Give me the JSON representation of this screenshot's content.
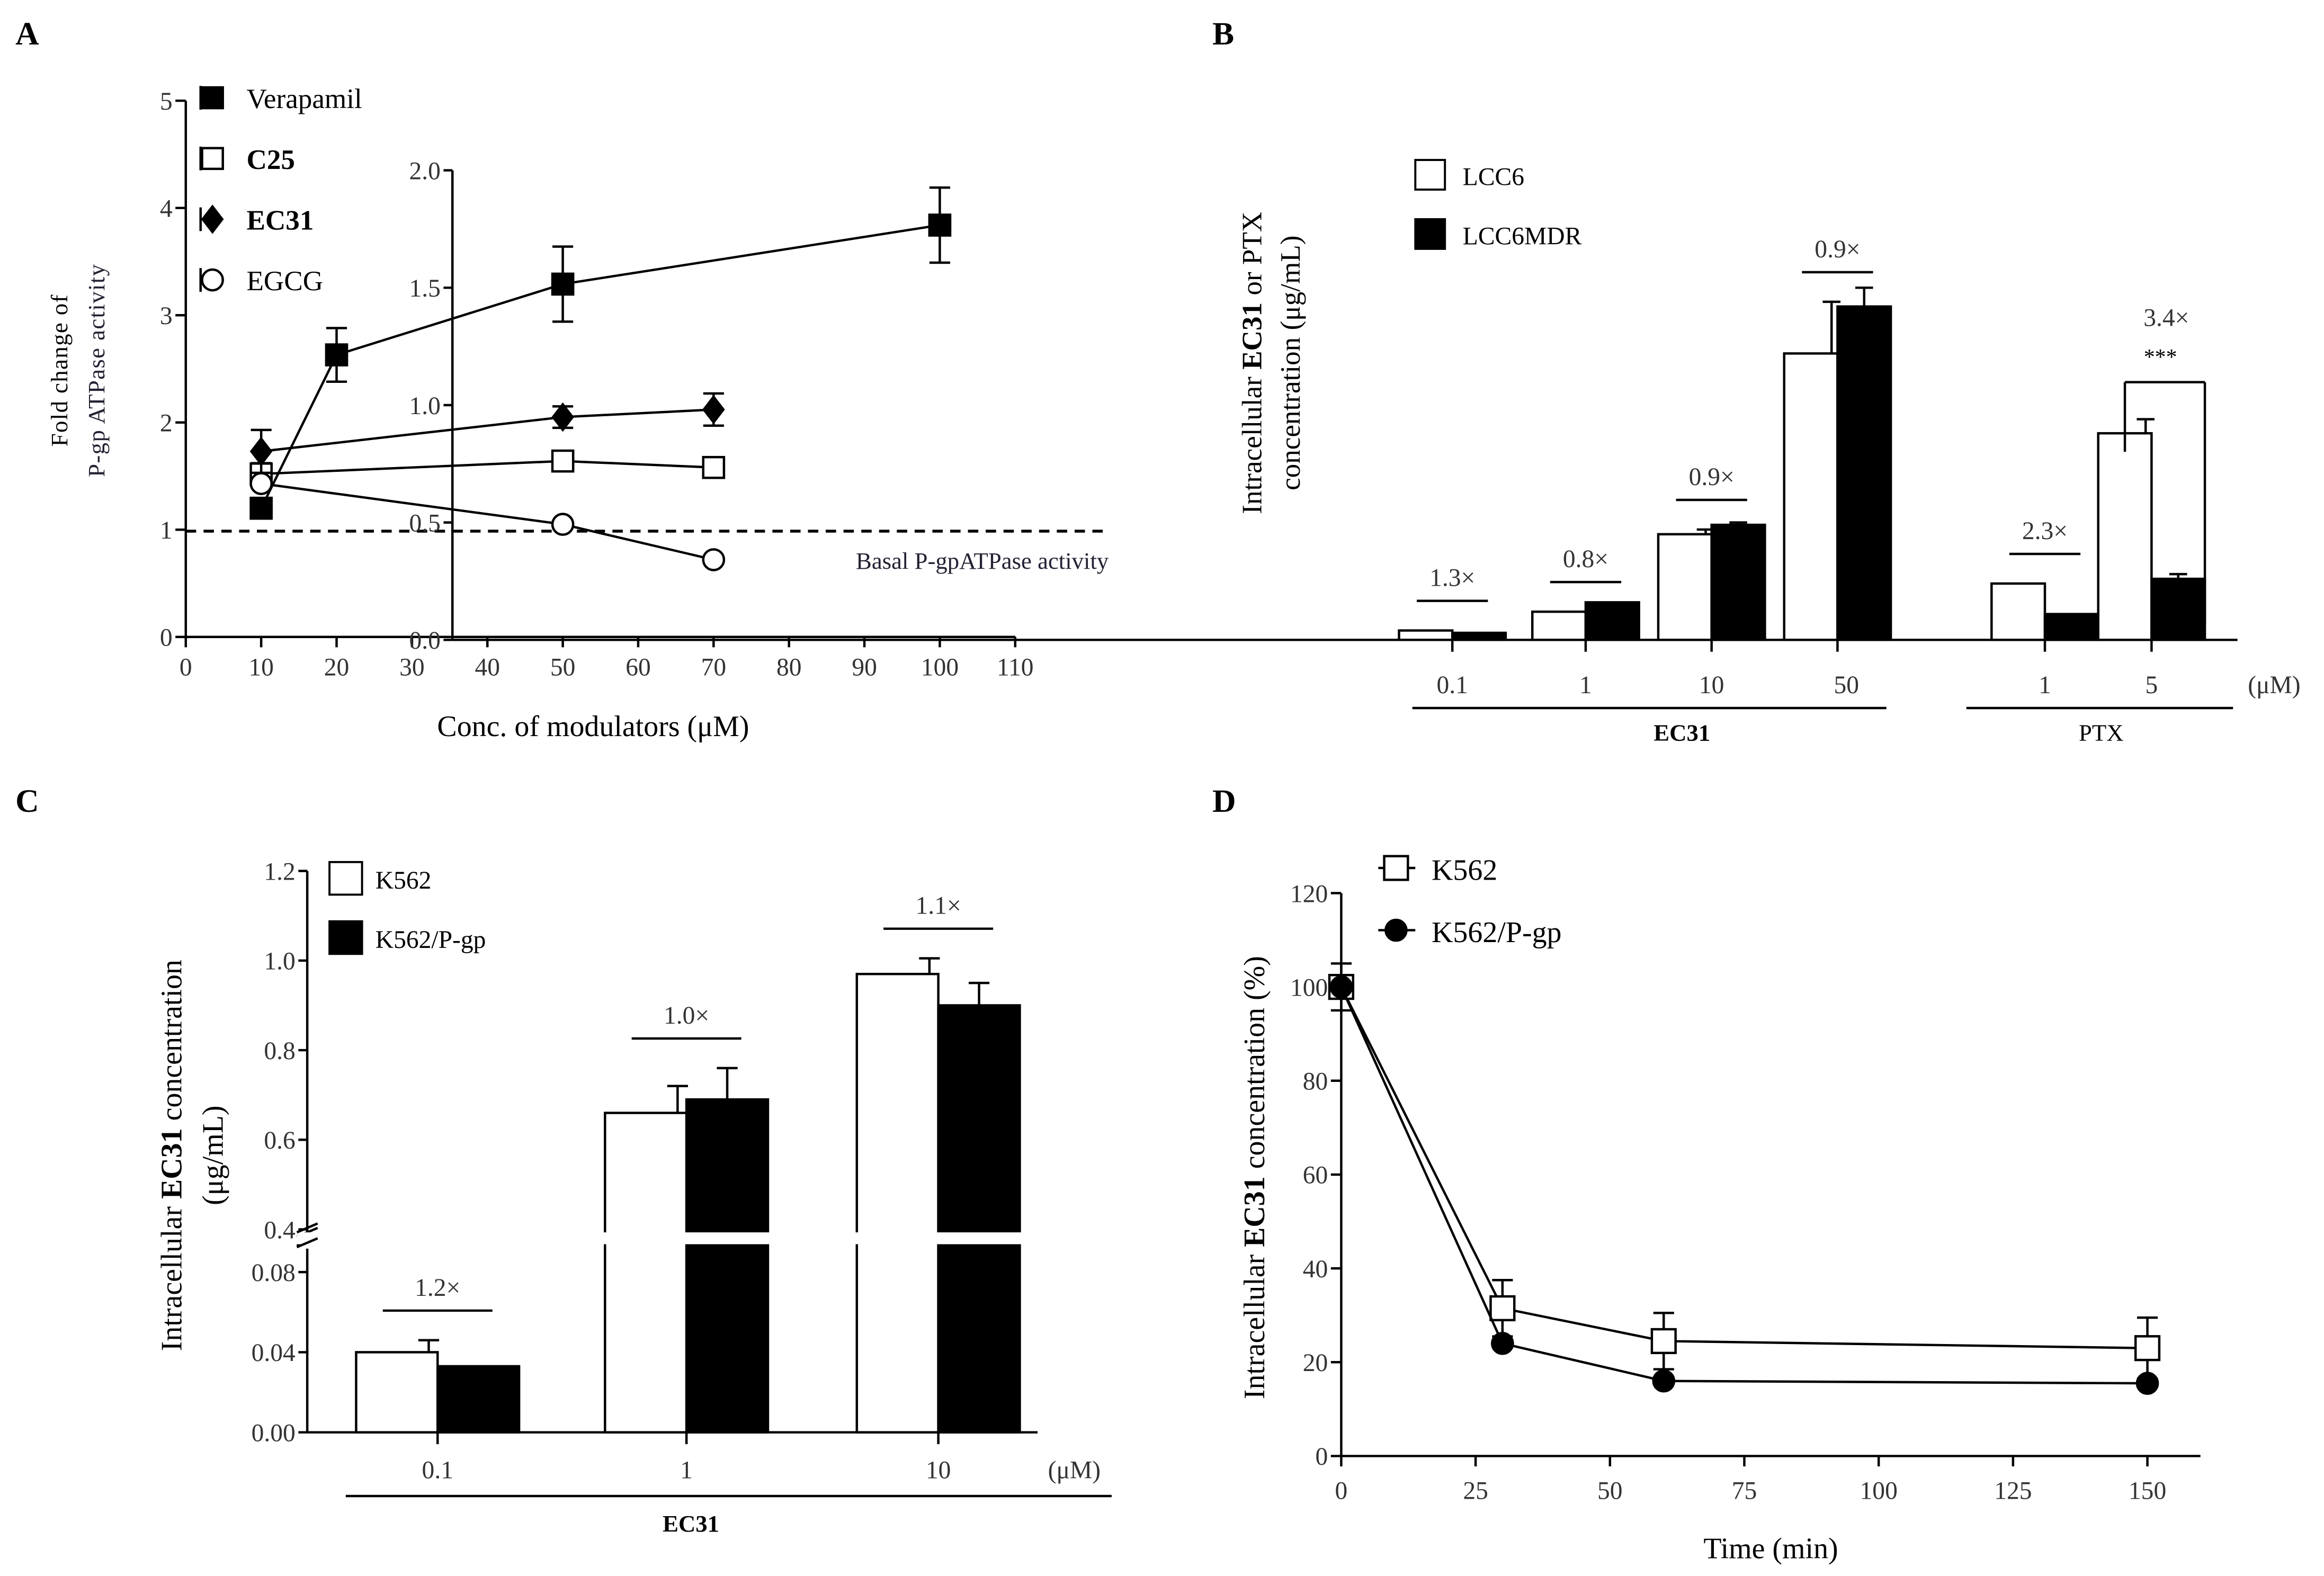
{
  "chart_data": [
    {
      "panel": "A",
      "type": "line",
      "xlabel": "Conc. of modulators (μM)",
      "ylabel_lines": [
        "Fold change of",
        "P-gp ATPase activity"
      ],
      "xlim": [
        0,
        110
      ],
      "ylim": [
        0,
        5
      ],
      "xticks": [
        "0",
        "10",
        "20",
        "30",
        "40",
        "50",
        "60",
        "70",
        "80",
        "90",
        "100",
        "110"
      ],
      "yticks": [
        "0",
        "1",
        "2",
        "3",
        "4",
        "5"
      ],
      "reference_line": {
        "y": 1,
        "label": "Basal P-gpATPase activity",
        "style": "dashed"
      },
      "legend_position": "top-left",
      "series": [
        {
          "name": "Verapamil",
          "marker": "filled-square",
          "x": [
            10,
            20,
            50,
            100
          ],
          "y": [
            1.2,
            2.63,
            3.29,
            3.84
          ],
          "err": [
            0.05,
            0.25,
            0.35,
            0.35
          ]
        },
        {
          "name": "C25",
          "bold": true,
          "marker": "open-square",
          "x": [
            10,
            50,
            70
          ],
          "y": [
            1.52,
            1.64,
            1.58
          ],
          "err": [
            0.1,
            0.05,
            0.05
          ]
        },
        {
          "name": "EC31",
          "bold": true,
          "marker": "filled-diamond",
          "x": [
            10,
            50,
            70
          ],
          "y": [
            1.73,
            2.05,
            2.12
          ],
          "err": [
            0.2,
            0.1,
            0.15
          ]
        },
        {
          "name": "EGCG",
          "marker": "open-circle",
          "x": [
            10,
            50,
            70
          ],
          "y": [
            1.43,
            1.05,
            0.72
          ],
          "err": [
            0,
            0,
            0
          ]
        }
      ]
    },
    {
      "panel": "B",
      "type": "bar",
      "ylabel_parts": [
        "Intracellular ",
        "EC31",
        " or PTX"
      ],
      "ylabel_line2": "concentration (μg/mL)",
      "ylim": [
        0,
        2.0
      ],
      "yticks": [
        "0.0",
        "0.5",
        "1.0",
        "1.5",
        "2.0"
      ],
      "categories": [
        "0.1",
        "1",
        "10",
        "50",
        "1",
        "5"
      ],
      "unit_label": "(μM)",
      "groups": [
        {
          "label": "EC31",
          "bold": true
        },
        {
          "label": "PTX",
          "bold": false
        }
      ],
      "legend_position": "top-left",
      "series": [
        {
          "name": "LCC6",
          "fill": "#ffffff",
          "values": [
            0.04,
            0.12,
            0.45,
            1.22,
            0.24,
            0.88
          ],
          "err": [
            0,
            0,
            0.02,
            0.22,
            0,
            0.06
          ]
        },
        {
          "name": "LCC6MDR",
          "fill": "#000000",
          "values": [
            0.03,
            0.16,
            0.49,
            1.42,
            0.11,
            0.26
          ],
          "err": [
            0,
            0,
            0.01,
            0.08,
            0,
            0.02
          ]
        }
      ],
      "fold_labels": [
        "1.3×",
        "0.8×",
        "0.9×",
        "0.9×",
        "2.3×",
        "3.4×"
      ],
      "significance": "***"
    },
    {
      "panel": "C",
      "type": "bar",
      "ylabel_parts": [
        "Intracellular ",
        "EC31",
        " concentration"
      ],
      "ylabel_line2": "(μg/mL)",
      "y_break": true,
      "ylim_lower": [
        0,
        0.08
      ],
      "ylim_upper": [
        0.4,
        1.2
      ],
      "yticks_lower": [
        "0.00",
        "0.04",
        "0.08"
      ],
      "yticks_upper": [
        "0.4",
        "0.6",
        "0.8",
        "1.0",
        "1.2"
      ],
      "categories": [
        "0.1",
        "1",
        "10"
      ],
      "unit_label": "(μM)",
      "group_label": "EC31",
      "legend_position": "top-left",
      "series": [
        {
          "name": "K562",
          "fill": "#ffffff",
          "values": [
            0.04,
            0.66,
            0.97
          ],
          "err": [
            0.006,
            0.06,
            0.035
          ]
        },
        {
          "name": "K562/P-gp",
          "fill": "#000000",
          "values": [
            0.033,
            0.69,
            0.9
          ],
          "err": [
            0,
            0.07,
            0.05
          ]
        }
      ],
      "fold_labels": [
        "1.2×",
        "1.0×",
        "1.1×"
      ]
    },
    {
      "panel": "D",
      "type": "line",
      "xlabel": "Time (min)",
      "ylabel_parts": [
        "Intracellular ",
        "EC31",
        " concentration (%)"
      ],
      "xlim": [
        0,
        160
      ],
      "ylim": [
        0,
        120
      ],
      "xticks": [
        "0",
        "25",
        "50",
        "75",
        "100",
        "125",
        "150"
      ],
      "yticks": [
        "0",
        "20",
        "40",
        "60",
        "80",
        "100",
        "120"
      ],
      "legend_position": "top-left",
      "series": [
        {
          "name": "K562",
          "marker": "open-square",
          "x": [
            0,
            30,
            60,
            150
          ],
          "y": [
            100,
            31.5,
            24.5,
            23
          ],
          "err": [
            5,
            6,
            6,
            6.5
          ]
        },
        {
          "name": "K562/P-gp",
          "marker": "filled-circle",
          "x": [
            0,
            30,
            60,
            150
          ],
          "y": [
            100,
            24,
            16,
            15.5
          ],
          "err": [
            0,
            0,
            0,
            0
          ]
        }
      ]
    }
  ]
}
